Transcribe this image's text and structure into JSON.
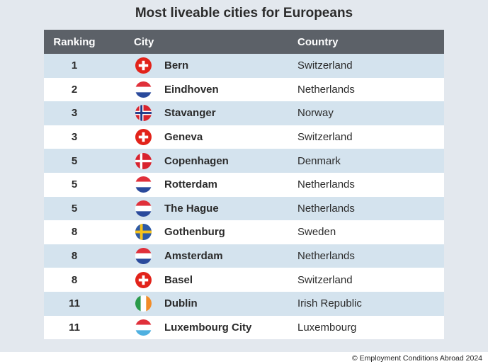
{
  "title": "Most liveable cities for Europeans",
  "headers": {
    "ranking": "Ranking",
    "city": "City",
    "country": "Country"
  },
  "rows": [
    {
      "rank": "1",
      "city": "Bern",
      "country": "Switzerland",
      "flag": "switzerland-flag-icon"
    },
    {
      "rank": "2",
      "city": "Eindhoven",
      "country": "Netherlands",
      "flag": "netherlands-flag-icon"
    },
    {
      "rank": "3",
      "city": "Stavanger",
      "country": "Norway",
      "flag": "norway-flag-icon"
    },
    {
      "rank": "3",
      "city": "Geneva",
      "country": "Switzerland",
      "flag": "switzerland-flag-icon"
    },
    {
      "rank": "5",
      "city": "Copenhagen",
      "country": "Denmark",
      "flag": "denmark-flag-icon"
    },
    {
      "rank": "5",
      "city": "Rotterdam",
      "country": "Netherlands",
      "flag": "netherlands-flag-icon"
    },
    {
      "rank": "5",
      "city": "The Hague",
      "country": "Netherlands",
      "flag": "netherlands-flag-icon"
    },
    {
      "rank": "8",
      "city": "Gothenburg",
      "country": "Sweden",
      "flag": "sweden-flag-icon"
    },
    {
      "rank": "8",
      "city": "Amsterdam",
      "country": "Netherlands",
      "flag": "netherlands-flag-icon"
    },
    {
      "rank": "8",
      "city": "Basel",
      "country": "Switzerland",
      "flag": "switzerland-flag-icon"
    },
    {
      "rank": "11",
      "city": "Dublin",
      "country": "Irish Republic",
      "flag": "ireland-flag-icon"
    },
    {
      "rank": "11",
      "city": "Luxembourg City",
      "country": "Luxembourg",
      "flag": "luxembourg-flag-icon"
    }
  ],
  "footer": "© Employment Conditions Abroad 2024",
  "colors": {
    "header_bg": "#5c6168",
    "stripe": "#d4e3ee",
    "panel": "#e3e8ee"
  }
}
